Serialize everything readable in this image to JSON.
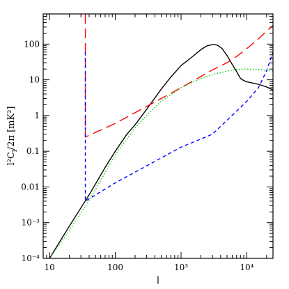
{
  "chart_data": {
    "type": "line",
    "title": "",
    "xlabel": "l",
    "ylabel": "l²C_l/2π  [mK²]",
    "ylabel_parts": {
      "main": "l²C",
      "sub": "l",
      "tail": "/2π  [mK²]"
    },
    "xscale": "log",
    "yscale": "log",
    "xlim": [
      8,
      25000
    ],
    "ylim": [
      0.0001,
      700
    ],
    "grid": false,
    "legend": "none",
    "x_ticks": [
      {
        "value": 10,
        "label": "10"
      },
      {
        "value": 100,
        "label": "100"
      },
      {
        "value": 1000,
        "label": "10³"
      },
      {
        "value": 10000,
        "label": "10⁴"
      }
    ],
    "y_ticks": [
      {
        "value": 0.0001,
        "label": "10⁻⁴"
      },
      {
        "value": 0.001,
        "label": "10⁻³"
      },
      {
        "value": 0.01,
        "label": "0.01"
      },
      {
        "value": 0.1,
        "label": "0.1"
      },
      {
        "value": 1,
        "label": "1"
      },
      {
        "value": 10,
        "label": "10"
      },
      {
        "value": 100,
        "label": "100"
      }
    ],
    "series": [
      {
        "color": "#000000",
        "style": "solid",
        "points": [
          [
            10,
            0.0001
          ],
          [
            20,
            0.0008
          ],
          [
            40,
            0.006
          ],
          [
            70,
            0.035
          ],
          [
            100,
            0.1
          ],
          [
            150,
            0.3
          ],
          [
            200,
            0.55
          ],
          [
            300,
            1.5
          ],
          [
            500,
            5.5
          ],
          [
            700,
            12
          ],
          [
            1000,
            25
          ],
          [
            1500,
            45
          ],
          [
            2000,
            70
          ],
          [
            2500,
            90
          ],
          [
            3100,
            98
          ],
          [
            3600,
            93
          ],
          [
            4200,
            75
          ],
          [
            5000,
            48
          ],
          [
            6000,
            27
          ],
          [
            7000,
            17
          ],
          [
            8000,
            11
          ],
          [
            9000,
            9.5
          ],
          [
            10000,
            8.8
          ],
          [
            15000,
            7.5
          ],
          [
            20000,
            6.3
          ],
          [
            25000,
            5.2
          ]
        ]
      },
      {
        "color": "#ff0000",
        "style": "long-dash",
        "points": [
          [
            35,
            700
          ],
          [
            35,
            0.25
          ],
          [
            100,
            0.6
          ],
          [
            1000,
            6
          ],
          [
            3000,
            19
          ],
          [
            5000,
            30
          ],
          [
            7000,
            45
          ],
          [
            10000,
            75
          ],
          [
            15000,
            140
          ],
          [
            20000,
            230
          ],
          [
            25000,
            330
          ]
        ]
      },
      {
        "color": "#0000ff",
        "style": "short-dash",
        "points": [
          [
            35,
            60
          ],
          [
            35,
            0.004
          ],
          [
            100,
            0.013
          ],
          [
            1000,
            0.13
          ],
          [
            3000,
            0.3
          ],
          [
            10000,
            2.5
          ],
          [
            15000,
            6
          ],
          [
            20000,
            18
          ],
          [
            25000,
            60
          ]
        ]
      },
      {
        "color": "#00cc00",
        "style": "dotted",
        "points": [
          [
            10,
            0.0001
          ],
          [
            20,
            0.0006
          ],
          [
            40,
            0.0042
          ],
          [
            70,
            0.025
          ],
          [
            100,
            0.08
          ],
          [
            200,
            0.45
          ],
          [
            300,
            1.0
          ],
          [
            500,
            2.5
          ],
          [
            1000,
            6
          ],
          [
            2000,
            11
          ],
          [
            3000,
            14
          ],
          [
            5000,
            17.5
          ],
          [
            7000,
            19.5
          ],
          [
            10000,
            20
          ],
          [
            15000,
            19.5
          ],
          [
            20000,
            18.5
          ],
          [
            25000,
            17.5
          ]
        ]
      }
    ]
  }
}
